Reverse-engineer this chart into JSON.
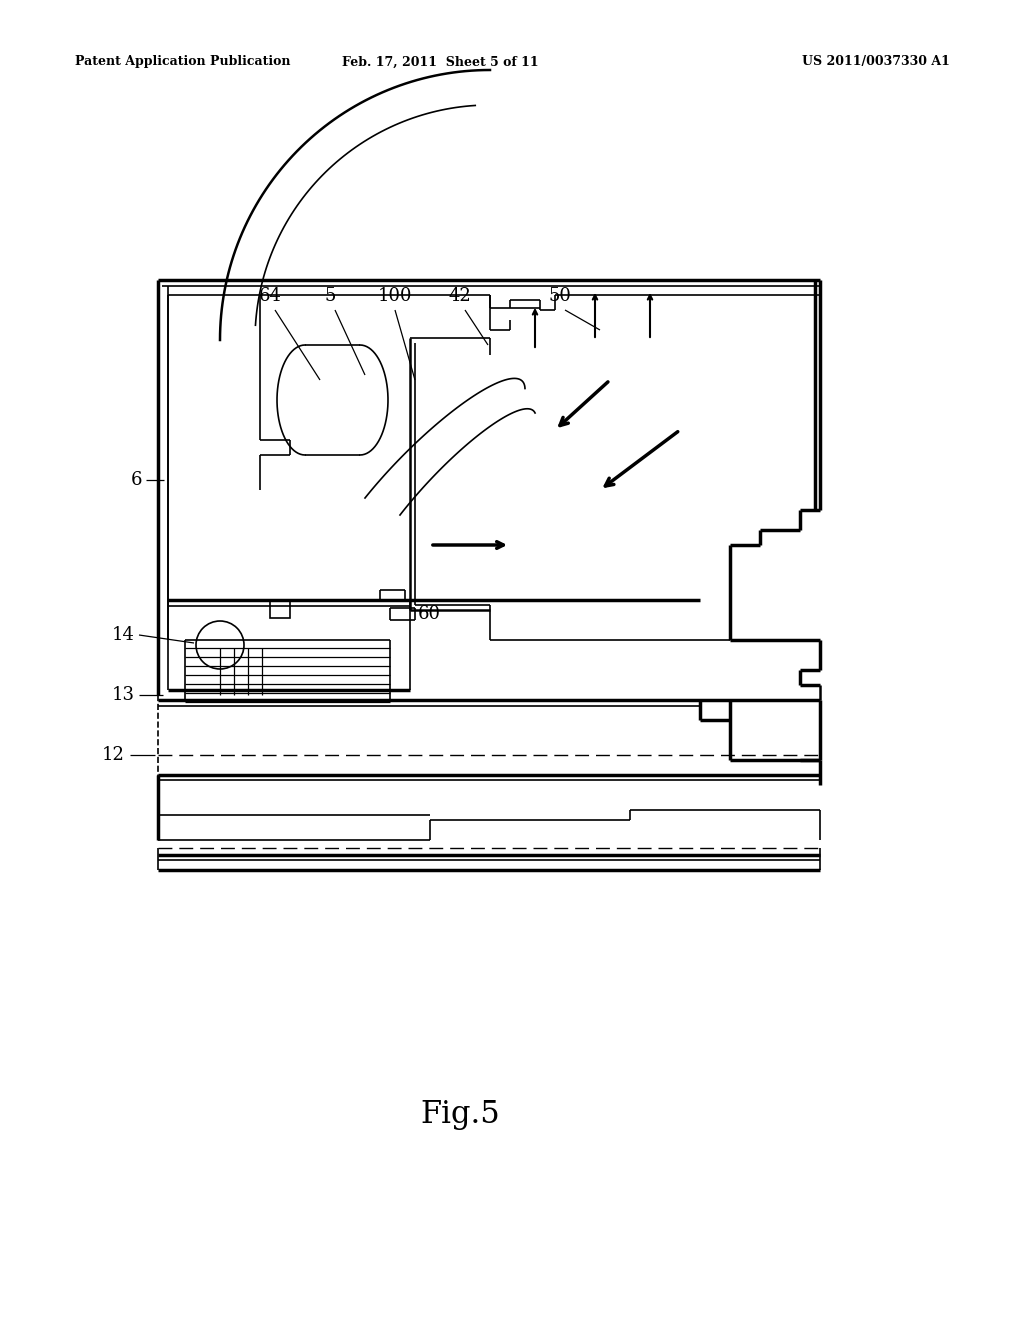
{
  "bg_color": "#ffffff",
  "line_color": "#000000",
  "fig_label": "Fig.5",
  "header_left": "Patent Application Publication",
  "header_mid": "Feb. 17, 2011  Sheet 5 of 11",
  "header_right": "US 2011/0037330 A1"
}
